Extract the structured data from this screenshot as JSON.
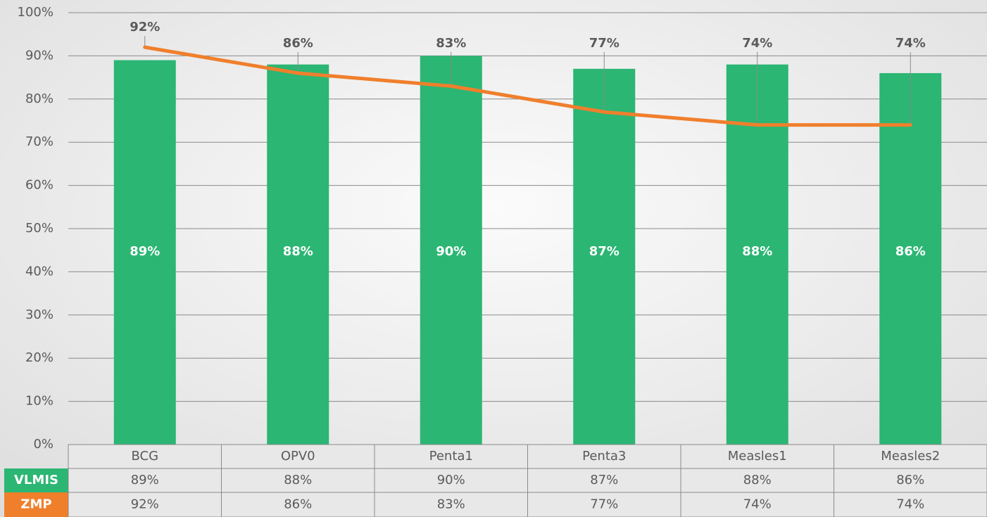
{
  "chart_data": {
    "type": "bar",
    "categories": [
      "BCG",
      "OPV0",
      "Penta1",
      "Penta3",
      "Measles1",
      "Measles2"
    ],
    "series": [
      {
        "name": "VLMIS",
        "type": "bar",
        "color": "#2bb673",
        "values": [
          89,
          88,
          90,
          87,
          88,
          86
        ],
        "value_labels": [
          "89%",
          "88%",
          "90%",
          "87%",
          "88%",
          "86%"
        ]
      },
      {
        "name": "ZMP",
        "type": "line",
        "color": "#f07f2c",
        "values": [
          92,
          86,
          83,
          77,
          74,
          74
        ],
        "value_labels": [
          "92%",
          "86%",
          "83%",
          "77%",
          "74%",
          "74%"
        ]
      }
    ],
    "ylim": [
      0,
      100
    ],
    "yticks": [
      {
        "value": 0,
        "label": "0%"
      },
      {
        "value": 10,
        "label": "10%"
      },
      {
        "value": 20,
        "label": "20%"
      },
      {
        "value": 30,
        "label": "30%"
      },
      {
        "value": 40,
        "label": "40%"
      },
      {
        "value": 50,
        "label": "50%"
      },
      {
        "value": 60,
        "label": "60%"
      },
      {
        "value": 70,
        "label": "70%"
      },
      {
        "value": 80,
        "label": "80%"
      },
      {
        "value": 90,
        "label": "90%"
      },
      {
        "value": 100,
        "label": "100%"
      }
    ],
    "grid": true
  }
}
